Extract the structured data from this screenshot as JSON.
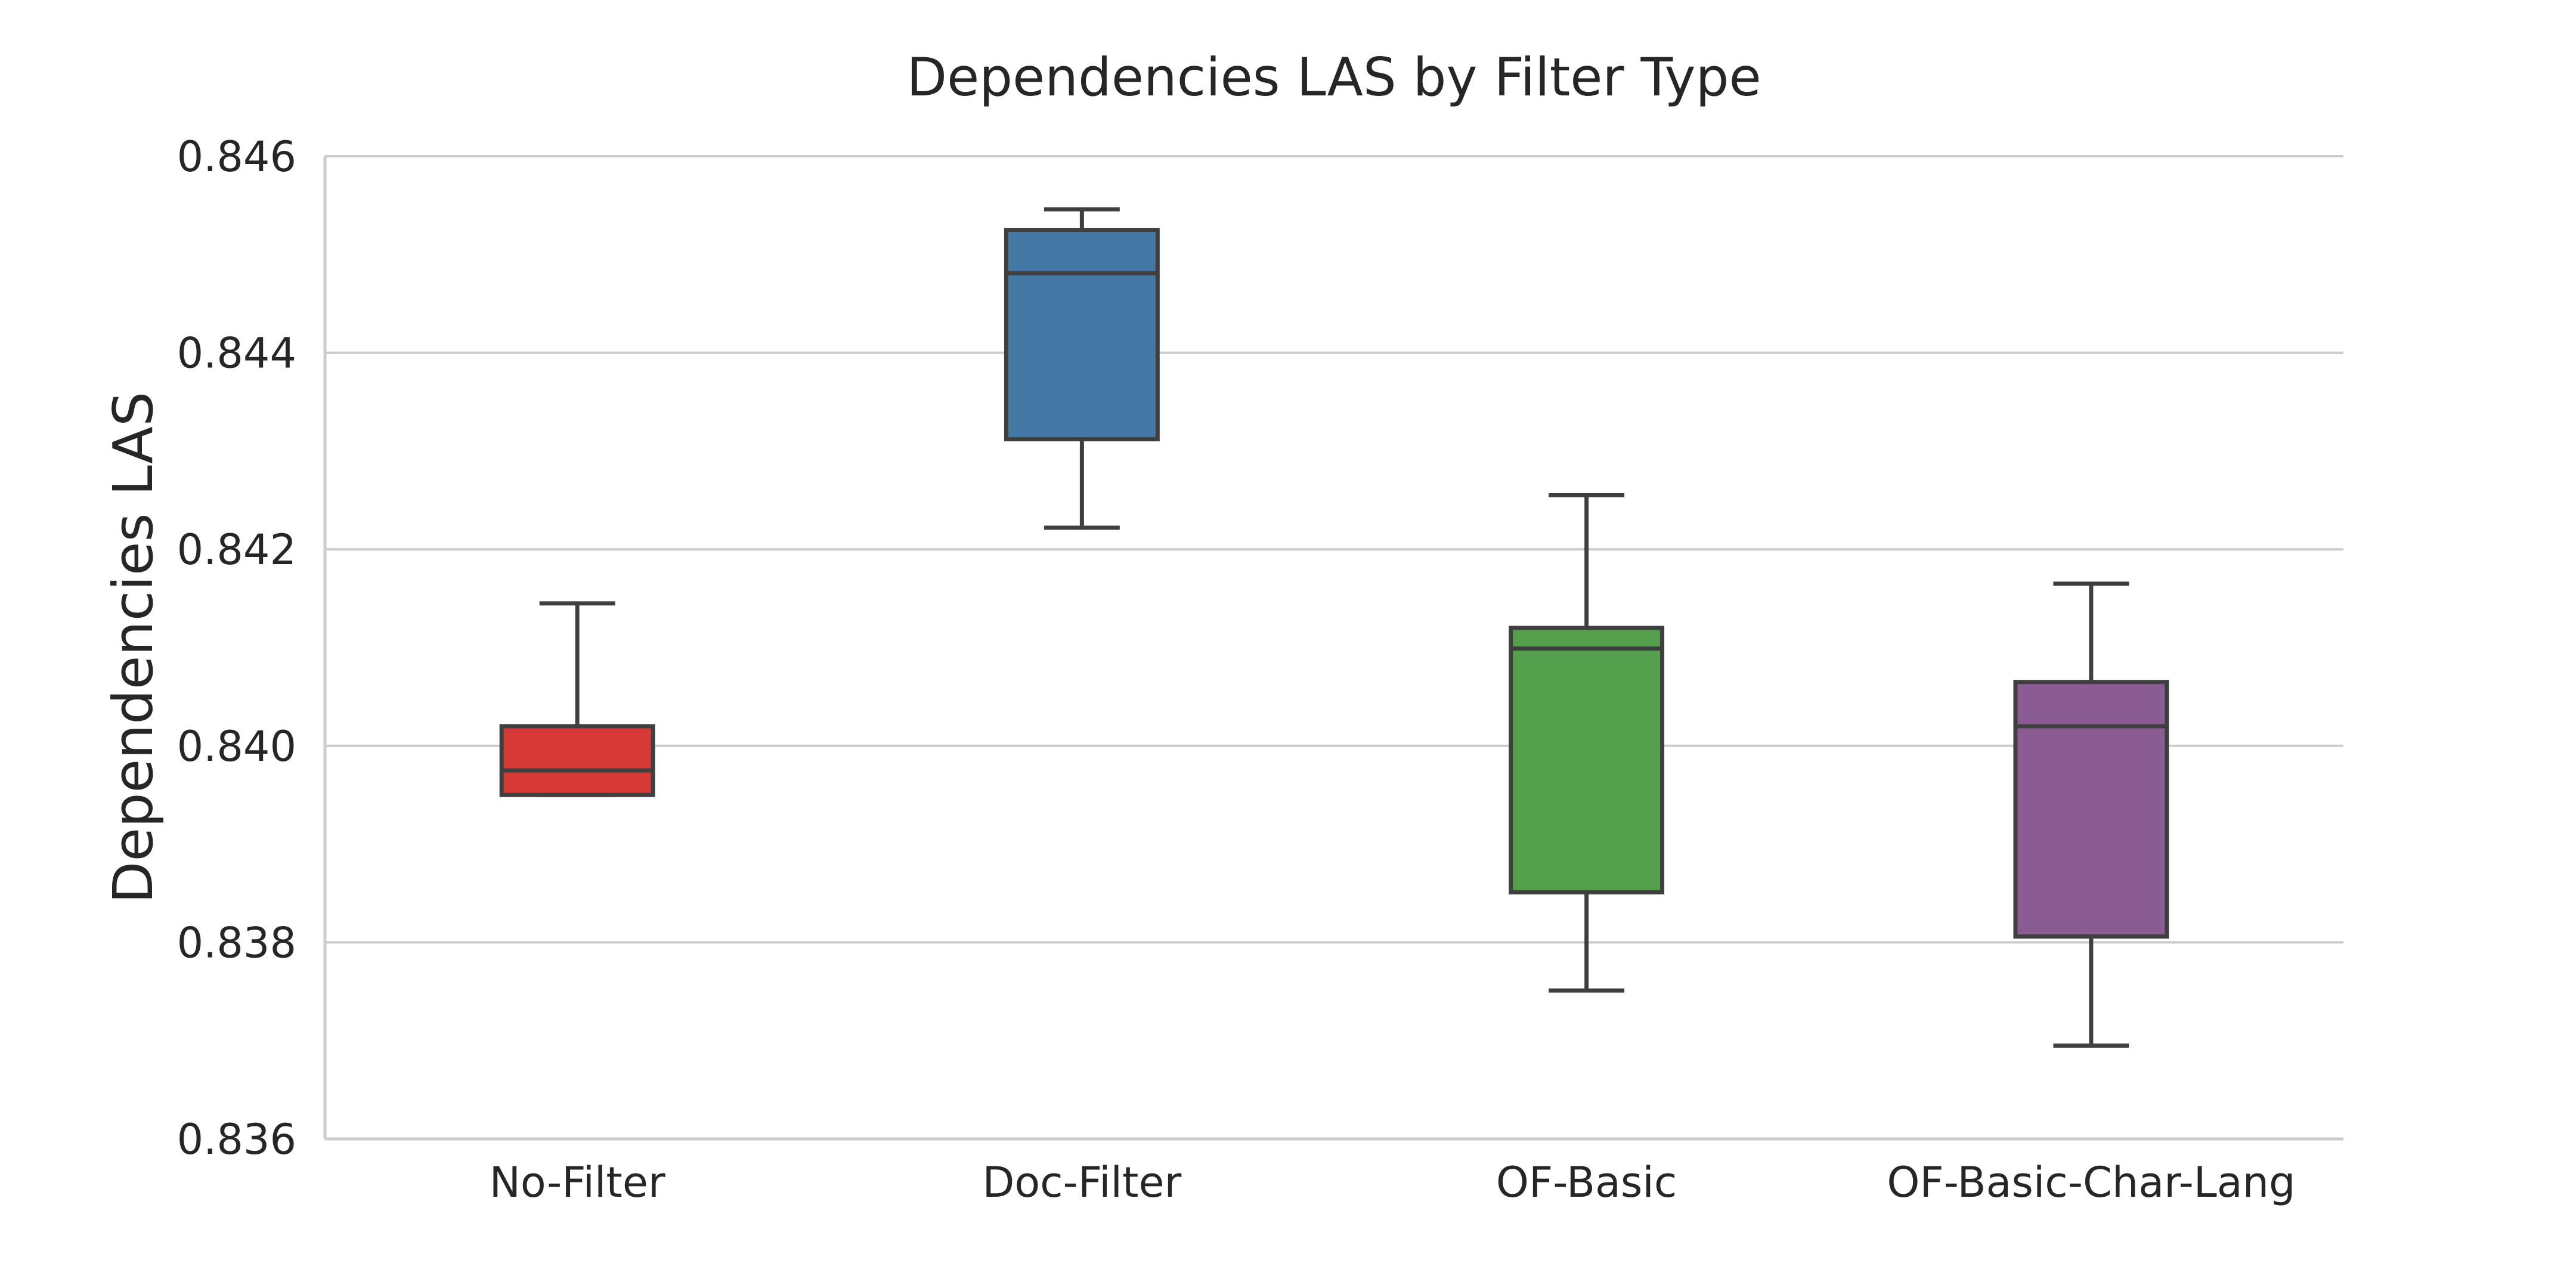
{
  "chart_data": {
    "type": "box",
    "title": "Dependencies LAS by Filter Type",
    "xlabel": "",
    "ylabel": "Dependencies LAS",
    "ylim": [
      0.836,
      0.846
    ],
    "yticks": [
      0.836,
      0.838,
      0.84,
      0.842,
      0.844,
      0.846
    ],
    "ytick_labels": [
      "0.836",
      "0.838",
      "0.840",
      "0.842",
      "0.844",
      "0.846"
    ],
    "grid": "horizontal",
    "categories": [
      "No-Filter",
      "Doc-Filter",
      "OF-Basic",
      "OF-Basic-Char-Lang"
    ],
    "colors": [
      "#d73a36",
      "#4479a6",
      "#55a04d",
      "#8b5c93"
    ],
    "boxes": [
      {
        "category": "No-Filter",
        "whisker_low": 0.8395,
        "q1": 0.8395,
        "median": 0.83975,
        "q3": 0.8402,
        "whisker_high": 0.84145
      },
      {
        "category": "Doc-Filter",
        "whisker_low": 0.84222,
        "q1": 0.84312,
        "median": 0.84481,
        "q3": 0.84525,
        "whisker_high": 0.84546
      },
      {
        "category": "OF-Basic",
        "whisker_low": 0.83751,
        "q1": 0.83851,
        "median": 0.84099,
        "q3": 0.8412,
        "whisker_high": 0.84255
      },
      {
        "category": "OF-Basic-Char-Lang",
        "whisker_low": 0.83695,
        "q1": 0.83806,
        "median": 0.8402,
        "q3": 0.84065,
        "whisker_high": 0.84165
      }
    ]
  }
}
